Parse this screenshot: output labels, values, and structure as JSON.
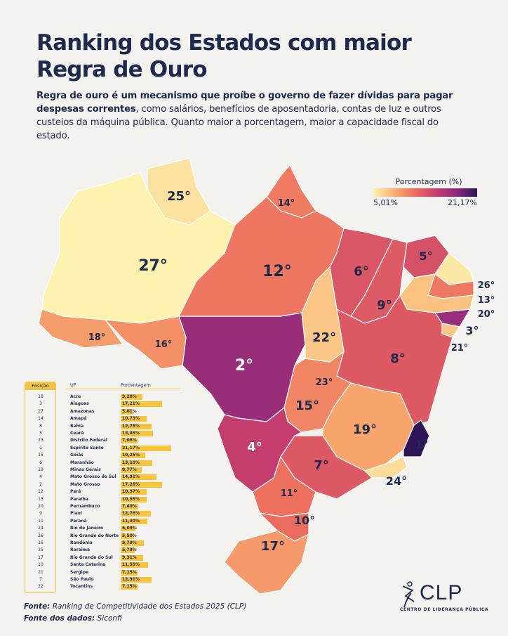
{
  "title": "Ranking dos Estados com maior Regra de Ouro",
  "subtitle": {
    "bold": "Regra de ouro é um mecanismo que proíbe o governo de fazer dívidas para pagar despesas correntes",
    "rest": ", como salários, benefícios de aposentadoria, contas de luz e outros custeios da máquina pública. Quanto maior a porcentagem, maior a capacidade fiscal do estado."
  },
  "legend": {
    "title": "Porcentagem (%)",
    "min_label": "5,01%",
    "max_label": "21,17%",
    "min": 5.01,
    "max": 21.17,
    "colors": [
      "#fdf2b0",
      "#f9b070",
      "#ec6d5e",
      "#c73f6d",
      "#8b2a7e",
      "#2d1557"
    ]
  },
  "rank_suffix": "°",
  "table": {
    "headers": {
      "position": "Posição",
      "uf": "UF",
      "percent": "Porcentagem"
    },
    "rows": [
      {
        "rank": 18,
        "state": "Acre",
        "percent": 9.2,
        "label": "9,20%"
      },
      {
        "rank": 3,
        "state": "Alagoas",
        "percent": 17.21,
        "label": "17,21%"
      },
      {
        "rank": 27,
        "state": "Amazonas",
        "percent": 5.01,
        "label": "5,01%"
      },
      {
        "rank": 14,
        "state": "Amapá",
        "percent": 10.73,
        "label": "10,73%"
      },
      {
        "rank": 8,
        "state": "Bahia",
        "percent": 12.78,
        "label": "12,78%"
      },
      {
        "rank": 5,
        "state": "Ceará",
        "percent": 13.45,
        "label": "13,45%"
      },
      {
        "rank": 23,
        "state": "Distrito Federal",
        "percent": 7.08,
        "label": "7,08%"
      },
      {
        "rank": 1,
        "state": "Espírito Santo",
        "percent": 21.17,
        "label": "21,17%"
      },
      {
        "rank": 15,
        "state": "Goiás",
        "percent": 10.25,
        "label": "10,25%"
      },
      {
        "rank": 6,
        "state": "Maranhão",
        "percent": 13.1,
        "label": "13,10%"
      },
      {
        "rank": 19,
        "state": "Minas Gerais",
        "percent": 8.77,
        "label": "8,77%"
      },
      {
        "rank": 4,
        "state": "Mato Grosso do Sul",
        "percent": 14.91,
        "label": "14,91%"
      },
      {
        "rank": 2,
        "state": "Mato Grosso",
        "percent": 17.26,
        "label": "17,26%"
      },
      {
        "rank": 12,
        "state": "Pará",
        "percent": 10.97,
        "label": "10,97%"
      },
      {
        "rank": 13,
        "state": "Paraíba",
        "percent": 10.95,
        "label": "10,95%"
      },
      {
        "rank": 20,
        "state": "Pernambuco",
        "percent": 7.4,
        "label": "7,40%"
      },
      {
        "rank": 9,
        "state": "Piauí",
        "percent": 12.76,
        "label": "12,76%"
      },
      {
        "rank": 11,
        "state": "Paraná",
        "percent": 11.3,
        "label": "11,30%"
      },
      {
        "rank": 24,
        "state": "Rio de Janeiro",
        "percent": 6.09,
        "label": "6,09%"
      },
      {
        "rank": 26,
        "state": "Rio Grande do Norte",
        "percent": 5.5,
        "label": "5,50%"
      },
      {
        "rank": 16,
        "state": "Rondônia",
        "percent": 9.79,
        "label": "9,79%"
      },
      {
        "rank": 25,
        "state": "Roraima",
        "percent": 5.79,
        "label": "5,79%"
      },
      {
        "rank": 17,
        "state": "Rio Grande do Sul",
        "percent": 9.31,
        "label": "9,31%"
      },
      {
        "rank": 10,
        "state": "Santa Catarina",
        "percent": 11.55,
        "label": "11,55%"
      },
      {
        "rank": 21,
        "state": "Sergipe",
        "percent": 7.15,
        "label": "7,15%"
      },
      {
        "rank": 7,
        "state": "São Paulo",
        "percent": 12.91,
        "label": "12,91%"
      },
      {
        "rank": 22,
        "state": "Tocantins",
        "percent": 7.15,
        "label": "7,15%"
      }
    ]
  },
  "footer": {
    "source_label": "Fonte:",
    "source": " Ranking de Competitividade dos Estados 2025 (CLP)",
    "data_label": "Fonte dos dados:",
    "data": " Siconfi"
  },
  "logo": {
    "name": "CLP",
    "caption": "CENTRO DE LIDERANÇA PÚBLICA"
  }
}
